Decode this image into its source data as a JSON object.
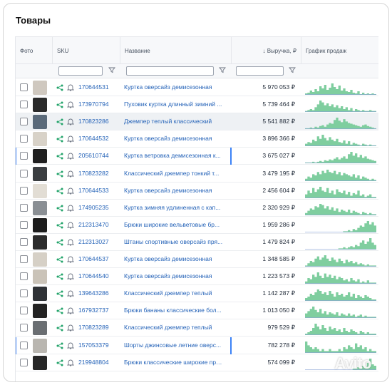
{
  "page": {
    "title": "Товары"
  },
  "columns": {
    "photo": "Фото",
    "sku": "SKU",
    "name": "Название",
    "revenue": "↓ Выручка, ₽",
    "chart": "График продаж"
  },
  "rows": [
    {
      "sku": "170644531",
      "name": "Куртка оверсайз демисезонная",
      "revenue": "5 970 053 ₽",
      "photo_color": "#cfc8bf",
      "spark": [
        2,
        3,
        6,
        4,
        8,
        5,
        12,
        9,
        14,
        7,
        10,
        16,
        11,
        8,
        13,
        6,
        9,
        5,
        4,
        7,
        3,
        2,
        5,
        1,
        3,
        1,
        2,
        1,
        2,
        1
      ]
    },
    {
      "sku": "173970794",
      "name": "Пуховик куртка длинный зимний ...",
      "revenue": "5 739 464 ₽",
      "photo_color": "#2a2a2a",
      "spark": [
        1,
        2,
        3,
        2,
        5,
        8,
        12,
        10,
        7,
        9,
        6,
        8,
        5,
        7,
        4,
        6,
        3,
        5,
        2,
        4,
        1,
        3,
        2,
        1,
        2,
        1,
        1,
        2,
        1,
        1
      ]
    },
    {
      "sku": "170823286",
      "name": "Джемпер теплый классический",
      "revenue": "5 541 882 ₽",
      "photo_color": "#5a6a7a",
      "spark": [
        1,
        1,
        2,
        1,
        3,
        2,
        4,
        5,
        3,
        6,
        8,
        7,
        12,
        15,
        11,
        9,
        13,
        10,
        8,
        7,
        6,
        5,
        4,
        3,
        5,
        6,
        4,
        3,
        2,
        1
      ]
    },
    {
      "sku": "170644532",
      "name": "Куртка оверсайз демисезонная",
      "revenue": "3 896 366 ₽",
      "photo_color": "#d8d2c8",
      "spark": [
        3,
        5,
        4,
        8,
        6,
        12,
        9,
        14,
        10,
        7,
        11,
        8,
        6,
        9,
        5,
        4,
        7,
        3,
        6,
        2,
        4,
        3,
        2,
        1,
        3,
        2,
        1,
        2,
        1,
        1
      ]
    },
    {
      "sku": "205610744",
      "name": "Куртка ветровка демисезонная к...",
      "revenue": "3 675 027 ₽",
      "photo_color": "#1f1f1f",
      "spark": [
        1,
        1,
        1,
        2,
        1,
        2,
        3,
        2,
        4,
        3,
        5,
        4,
        6,
        8,
        5,
        7,
        9,
        6,
        12,
        15,
        10,
        13,
        8,
        11,
        7,
        9,
        6,
        5,
        4,
        3
      ]
    },
    {
      "sku": "170823282",
      "name": "Классический джемпер тонкий т...",
      "revenue": "3 479 195 ₽",
      "photo_color": "#3a3d40",
      "spark": [
        2,
        4,
        3,
        6,
        5,
        8,
        6,
        9,
        7,
        10,
        8,
        7,
        9,
        6,
        8,
        5,
        7,
        6,
        5,
        4,
        6,
        3,
        5,
        2,
        4,
        3,
        2,
        1,
        2,
        1
      ]
    },
    {
      "sku": "170644533",
      "name": "Куртка оверсайз демисезонная",
      "revenue": "2 456 604 ₽",
      "photo_color": "#e2ddd4",
      "spark": [
        3,
        6,
        4,
        8,
        5,
        7,
        9,
        6,
        5,
        8,
        4,
        6,
        3,
        7,
        5,
        4,
        6,
        3,
        5,
        2,
        4,
        3,
        6,
        2,
        3,
        1,
        2,
        3,
        1,
        1
      ]
    },
    {
      "sku": "174905235",
      "name": "Куртка зимняя удлиненная с кап...",
      "revenue": "2 320 929 ₽",
      "photo_color": "#8a8f94",
      "spark": [
        2,
        4,
        6,
        5,
        8,
        7,
        10,
        9,
        6,
        8,
        5,
        7,
        4,
        6,
        3,
        5,
        4,
        3,
        5,
        2,
        4,
        3,
        2,
        1,
        3,
        2,
        1,
        2,
        1,
        1
      ]
    },
    {
      "sku": "212313470",
      "name": "Брюки широкие вельветовые бр...",
      "revenue": "1 959 286 ₽",
      "photo_color": "#1c1c1c",
      "spark": [
        0,
        0,
        0,
        0,
        0,
        0,
        0,
        0,
        0,
        0,
        0,
        0,
        0,
        0,
        0,
        0,
        1,
        1,
        2,
        1,
        3,
        2,
        4,
        6,
        5,
        8,
        10,
        7,
        9,
        6
      ]
    },
    {
      "sku": "212313027",
      "name": "Штаны спортивные оверсайз пря...",
      "revenue": "1 479 824 ₽",
      "photo_color": "#2b2b2b",
      "spark": [
        0,
        0,
        0,
        0,
        0,
        0,
        0,
        0,
        0,
        0,
        0,
        0,
        0,
        0,
        1,
        1,
        2,
        1,
        2,
        3,
        2,
        4,
        3,
        6,
        8,
        5,
        7,
        10,
        6,
        4
      ]
    },
    {
      "sku": "170644537",
      "name": "Куртка оверсайз демисезонная",
      "revenue": "1 348 585 ₽",
      "photo_color": "#d6d0c6",
      "spark": [
        1,
        3,
        5,
        4,
        7,
        9,
        6,
        8,
        10,
        7,
        5,
        8,
        6,
        4,
        7,
        5,
        3,
        6,
        4,
        5,
        3,
        4,
        2,
        3,
        2,
        1,
        2,
        1,
        1,
        1
      ]
    },
    {
      "sku": "170644540",
      "name": "Куртка оверсайз демисезонная",
      "revenue": "1 223 573 ₽",
      "photo_color": "#cac3b8",
      "spark": [
        2,
        5,
        4,
        8,
        6,
        10,
        7,
        5,
        9,
        6,
        8,
        5,
        7,
        4,
        6,
        5,
        3,
        4,
        2,
        5,
        3,
        2,
        4,
        1,
        2,
        1,
        3,
        1,
        1,
        1
      ]
    },
    {
      "sku": "139643286",
      "name": "Классический джемпер теплый",
      "revenue": "1 142 287 ₽",
      "photo_color": "#2f3236",
      "spark": [
        2,
        3,
        5,
        4,
        6,
        8,
        7,
        5,
        6,
        4,
        7,
        5,
        3,
        6,
        4,
        5,
        3,
        4,
        6,
        3,
        5,
        2,
        4,
        3,
        2,
        4,
        3,
        2,
        1,
        1
      ]
    },
    {
      "sku": "167932737",
      "name": "Брюки бананы классические бол...",
      "revenue": "1 013 050 ₽",
      "photo_color": "#222222",
      "spark": [
        4,
        6,
        8,
        10,
        7,
        5,
        8,
        4,
        6,
        3,
        5,
        4,
        3,
        5,
        2,
        4,
        3,
        2,
        4,
        2,
        3,
        1,
        2,
        3,
        1,
        2,
        1,
        1,
        1,
        1
      ]
    },
    {
      "sku": "170823289",
      "name": "Классический джемпер теплый",
      "revenue": "979 529 ₽",
      "photo_color": "#6a6e72",
      "spark": [
        1,
        2,
        3,
        5,
        8,
        6,
        4,
        7,
        5,
        3,
        6,
        4,
        5,
        3,
        4,
        2,
        5,
        3,
        2,
        4,
        3,
        2,
        1,
        3,
        2,
        1,
        2,
        1,
        1,
        1
      ]
    },
    {
      "sku": "157053379",
      "name": "Шорты джинсовые летние оверс...",
      "revenue": "782 278 ₽",
      "photo_color": "#b9b6b0",
      "spark": [
        6,
        4,
        3,
        2,
        3,
        2,
        1,
        2,
        1,
        1,
        2,
        1,
        1,
        1,
        2,
        1,
        3,
        2,
        4,
        3,
        2,
        5,
        3,
        4,
        2,
        3,
        1,
        2,
        1,
        1
      ]
    },
    {
      "sku": "219948804",
      "name": "Брюки классические широкие пря...",
      "revenue": "574 099 ₽",
      "photo_color": "#262626",
      "spark": [
        0,
        0,
        0,
        0,
        0,
        0,
        0,
        0,
        0,
        0,
        0,
        0,
        0,
        0,
        0,
        0,
        0,
        0,
        0,
        0,
        1,
        1,
        2,
        1,
        3,
        2,
        5,
        8,
        4,
        3
      ]
    }
  ],
  "colors": {
    "link": "#2563b8",
    "spark": "#7fce9f",
    "accent": "#3b82f6"
  },
  "icons": {
    "share": "share-icon",
    "bell": "bell-icon",
    "filter": "filter-icon"
  },
  "watermark": "Avito"
}
